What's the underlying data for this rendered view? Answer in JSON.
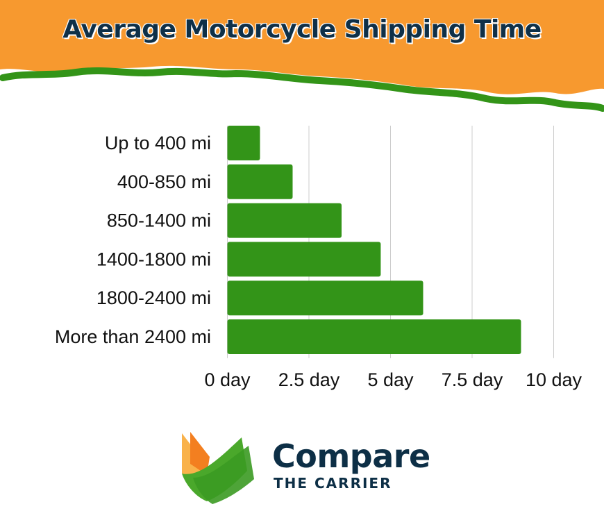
{
  "colors": {
    "header": "#f7992f",
    "stripe": "#339418",
    "bar": "#339418",
    "title": "#0f3048",
    "grid": "#cccccc"
  },
  "chart_data": {
    "type": "bar",
    "orientation": "horizontal",
    "title": "Average Motorcycle Shipping Time",
    "categories": [
      "Up to 400 mi",
      "400-850 mi",
      "850-1400 mi",
      "1400-1800 mi",
      "1800-2400 mi",
      "More than 2400 mi"
    ],
    "values": [
      1.0,
      2.0,
      3.5,
      4.7,
      6.0,
      9.0
    ],
    "xlim": [
      0,
      10
    ],
    "xticks": [
      0,
      2.5,
      5,
      7.5,
      10
    ],
    "xtick_labels": [
      "0 day",
      "2.5 day",
      "5 day",
      "7.5 day",
      "10 day"
    ],
    "xlabel": "",
    "ylabel": "",
    "grid": "vertical"
  },
  "logo": {
    "main": "Compare",
    "sub": "THE CARRIER"
  }
}
